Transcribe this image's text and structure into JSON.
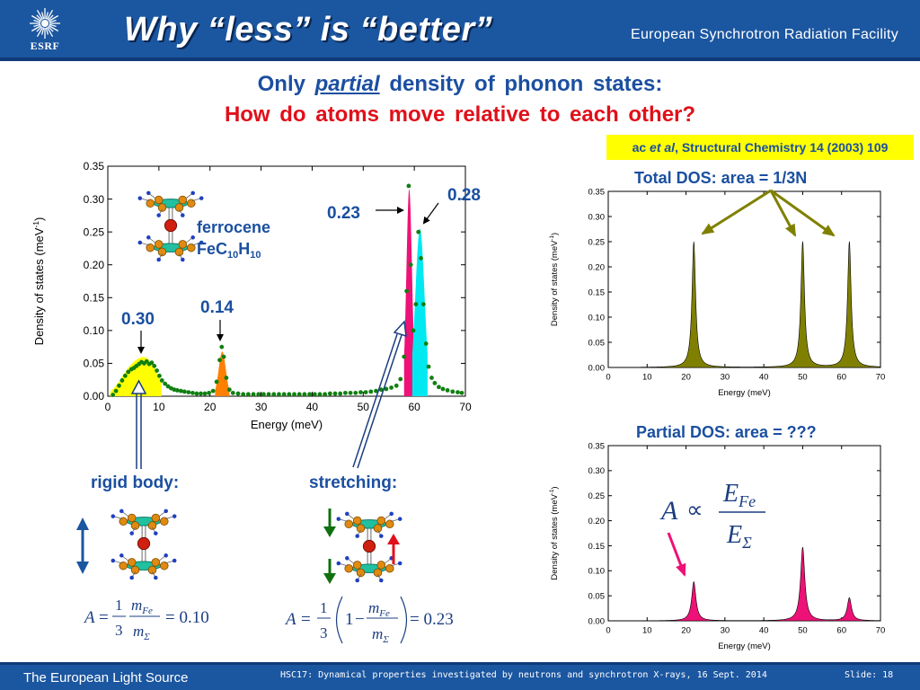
{
  "header": {
    "title": "Why “less” is “better”",
    "organization": "European Synchrotron Radiation Facility",
    "logo_text": "ESRF",
    "logo_icon": "esrf-sunburst-logo-icon"
  },
  "subtitle": {
    "line1_prefix": "Only",
    "line1_emphasis": "partial",
    "line1_suffix": "density of phonon states:",
    "line2": "How do atoms move relative to each other?"
  },
  "reference": {
    "authors": "ac",
    "etal": "et al",
    "journal": ", Structural Chemistry 14 (2003) 109"
  },
  "main_plot_labels": {
    "molecule_name": "ferrocene",
    "formula_parts": [
      "FeC",
      "10",
      "H",
      "10"
    ],
    "peak_labels": [
      "0.30",
      "0.14",
      "0.23",
      "0.28"
    ],
    "rigid_body_label": "rigid body:",
    "stretching_label": "stretching:"
  },
  "right_panels": {
    "total_title": "Total DOS:  area = 1/3N",
    "partial_title": "Partial DOS: area = ???"
  },
  "equations": {
    "prop": {
      "A": "A",
      "prop": "∝",
      "num": "E",
      "num_sub": "Fe",
      "den": "E",
      "den_sub": "Σ"
    },
    "rigid": {
      "lhs": "A",
      "eq": "=",
      "one": "1",
      "three": "3",
      "num": "m",
      "num_sub": "Fe",
      "den": "m",
      "den_sub": "Σ",
      "result": "= 0.10"
    },
    "stretch": {
      "lhs": "A",
      "eq": "=",
      "one": "1",
      "three": "3",
      "inner_one": "1",
      "minus": "−",
      "num": "m",
      "num_sub": "Fe",
      "den": "m",
      "den_sub": "Σ",
      "result": "= 0.23"
    }
  },
  "footer": {
    "left": "The European Light Source",
    "conference": "HSC17: Dynamical properties investigated by neutrons and synchrotron X-rays, 16 Sept. 2014",
    "slide": "Slide: 18"
  },
  "colors": {
    "header_blue": "#1b56a0",
    "label_blue": "#1b4fa0",
    "red": "#e0101a",
    "olive": "#808000",
    "magenta": "#ee1177",
    "cyan": "#00e8f0",
    "yellow": "#ffff00",
    "orange": "#ff8000",
    "green_points": "#108010"
  },
  "chart_data": [
    {
      "id": "main",
      "type": "area",
      "xlabel": "Energy (meV)",
      "ylabel": "Density of states (meV",
      "ylabel_sup": "-1",
      "ylabel_end": ")",
      "xlim": [
        0,
        70
      ],
      "ylim": [
        0,
        0.35
      ],
      "xticks": [
        0,
        10,
        20,
        30,
        40,
        50,
        60,
        70
      ],
      "yticks": [
        "0.00",
        "0.05",
        "0.10",
        "0.15",
        "0.20",
        "0.25",
        "0.30",
        "0.35"
      ],
      "series": [
        {
          "color": "#ffff00",
          "peaks": [
            [
              4.5,
              0.038,
              2.2
            ],
            [
              8.0,
              0.045,
              2.0
            ]
          ],
          "range": [
            0.5,
            10.5
          ]
        },
        {
          "color": "#ff8000",
          "peaks": [
            [
              22.4,
              0.068,
              0.7
            ]
          ],
          "range": [
            21.0,
            23.8
          ]
        },
        {
          "color": "#ee1177",
          "peaks": [
            [
              59.0,
              0.315,
              0.55
            ]
          ],
          "range": [
            58.0,
            60.0
          ]
        },
        {
          "color": "#00e8f0",
          "peaks": [
            [
              61.1,
              0.255,
              0.9
            ]
          ],
          "range": [
            59.6,
            62.6
          ]
        }
      ],
      "points": {
        "color": "#108010",
        "xy": [
          [
            1,
            0.002
          ],
          [
            1.6,
            0.008
          ],
          [
            2.2,
            0.016
          ],
          [
            2.8,
            0.024
          ],
          [
            3.4,
            0.031
          ],
          [
            4,
            0.037
          ],
          [
            4.6,
            0.041
          ],
          [
            5.1,
            0.043
          ],
          [
            5.6,
            0.046
          ],
          [
            6.1,
            0.049
          ],
          [
            6.6,
            0.052
          ],
          [
            7.1,
            0.05
          ],
          [
            7.6,
            0.053
          ],
          [
            8.1,
            0.049
          ],
          [
            8.6,
            0.051
          ],
          [
            9.1,
            0.046
          ],
          [
            9.6,
            0.039
          ],
          [
            10.1,
            0.031
          ],
          [
            10.6,
            0.024
          ],
          [
            11.2,
            0.019
          ],
          [
            11.8,
            0.015
          ],
          [
            12.4,
            0.012
          ],
          [
            13,
            0.01
          ],
          [
            13.6,
            0.009
          ],
          [
            14.3,
            0.008
          ],
          [
            15,
            0.007
          ],
          [
            15.8,
            0.006
          ],
          [
            16.6,
            0.005
          ],
          [
            17.4,
            0.004
          ],
          [
            18.2,
            0.004
          ],
          [
            19,
            0.004
          ],
          [
            19.8,
            0.005
          ],
          [
            20.6,
            0.008
          ],
          [
            21.3,
            0.022
          ],
          [
            21.9,
            0.055
          ],
          [
            22.3,
            0.075
          ],
          [
            22.7,
            0.06
          ],
          [
            23.2,
            0.028
          ],
          [
            23.8,
            0.01
          ],
          [
            24.5,
            0.005
          ],
          [
            25.5,
            0.004
          ],
          [
            26.5,
            0.003
          ],
          [
            27.5,
            0.003
          ],
          [
            28.5,
            0.003
          ],
          [
            29.5,
            0.003
          ],
          [
            30.5,
            0.003
          ],
          [
            31.5,
            0.003
          ],
          [
            32.5,
            0.003
          ],
          [
            33.5,
            0.003
          ],
          [
            34.5,
            0.003
          ],
          [
            35.5,
            0.003
          ],
          [
            36.5,
            0.003
          ],
          [
            37.5,
            0.003
          ],
          [
            38.5,
            0.003
          ],
          [
            39.5,
            0.003
          ],
          [
            40.5,
            0.003
          ],
          [
            41.5,
            0.003
          ],
          [
            42.5,
            0.003
          ],
          [
            43.5,
            0.004
          ],
          [
            44.5,
            0.004
          ],
          [
            45.5,
            0.004
          ],
          [
            46.5,
            0.005
          ],
          [
            47.5,
            0.005
          ],
          [
            48.5,
            0.005
          ],
          [
            49.5,
            0.006
          ],
          [
            50.5,
            0.006
          ],
          [
            51.5,
            0.007
          ],
          [
            52.5,
            0.008
          ],
          [
            53.5,
            0.01
          ],
          [
            54.5,
            0.011
          ],
          [
            55.5,
            0.013
          ],
          [
            56.5,
            0.016
          ],
          [
            57.3,
            0.026
          ],
          [
            58,
            0.06
          ],
          [
            58.5,
            0.16
          ],
          [
            58.9,
            0.32
          ],
          [
            59.3,
            0.2
          ],
          [
            59.8,
            0.1
          ],
          [
            60.3,
            0.14
          ],
          [
            60.8,
            0.25
          ],
          [
            61.3,
            0.21
          ],
          [
            61.8,
            0.14
          ],
          [
            62.3,
            0.08
          ],
          [
            62.8,
            0.045
          ],
          [
            63.4,
            0.028
          ],
          [
            64,
            0.02
          ],
          [
            64.8,
            0.014
          ],
          [
            65.6,
            0.011
          ],
          [
            66.5,
            0.009
          ],
          [
            67.5,
            0.007
          ],
          [
            68.5,
            0.006
          ],
          [
            69.3,
            0.005
          ]
        ]
      }
    },
    {
      "id": "total",
      "type": "area",
      "xlabel": "Energy (meV)",
      "ylabel": "Density of states (meV",
      "ylabel_sup": "-1",
      "ylabel_end": ")",
      "xlim": [
        0,
        70
      ],
      "ylim": [
        0,
        0.35
      ],
      "xticks": [
        0,
        10,
        20,
        30,
        40,
        50,
        60,
        70
      ],
      "yticks": [
        "0.00",
        "0.05",
        "0.10",
        "0.15",
        "0.20",
        "0.25",
        "0.30",
        "0.35"
      ],
      "color": "#808000",
      "lorentz": {
        "gamma": 0.55,
        "peaks": [
          [
            22,
            0.25
          ],
          [
            50,
            0.25
          ],
          [
            62,
            0.25
          ]
        ]
      }
    },
    {
      "id": "partial",
      "type": "area",
      "xlabel": "Energy (meV)",
      "ylabel": "Density of states (meV",
      "ylabel_sup": "-1",
      "ylabel_end": ")",
      "xlim": [
        0,
        70
      ],
      "ylim": [
        0,
        0.35
      ],
      "xticks": [
        0,
        10,
        20,
        30,
        40,
        50,
        60,
        70
      ],
      "yticks": [
        "0.00",
        "0.05",
        "0.10",
        "0.15",
        "0.20",
        "0.25",
        "0.30",
        "0.35"
      ],
      "color": "#ee1177",
      "lorentz": {
        "gamma": 0.65,
        "peaks": [
          [
            22,
            0.078
          ],
          [
            50,
            0.147
          ],
          [
            62,
            0.046
          ]
        ]
      }
    }
  ]
}
